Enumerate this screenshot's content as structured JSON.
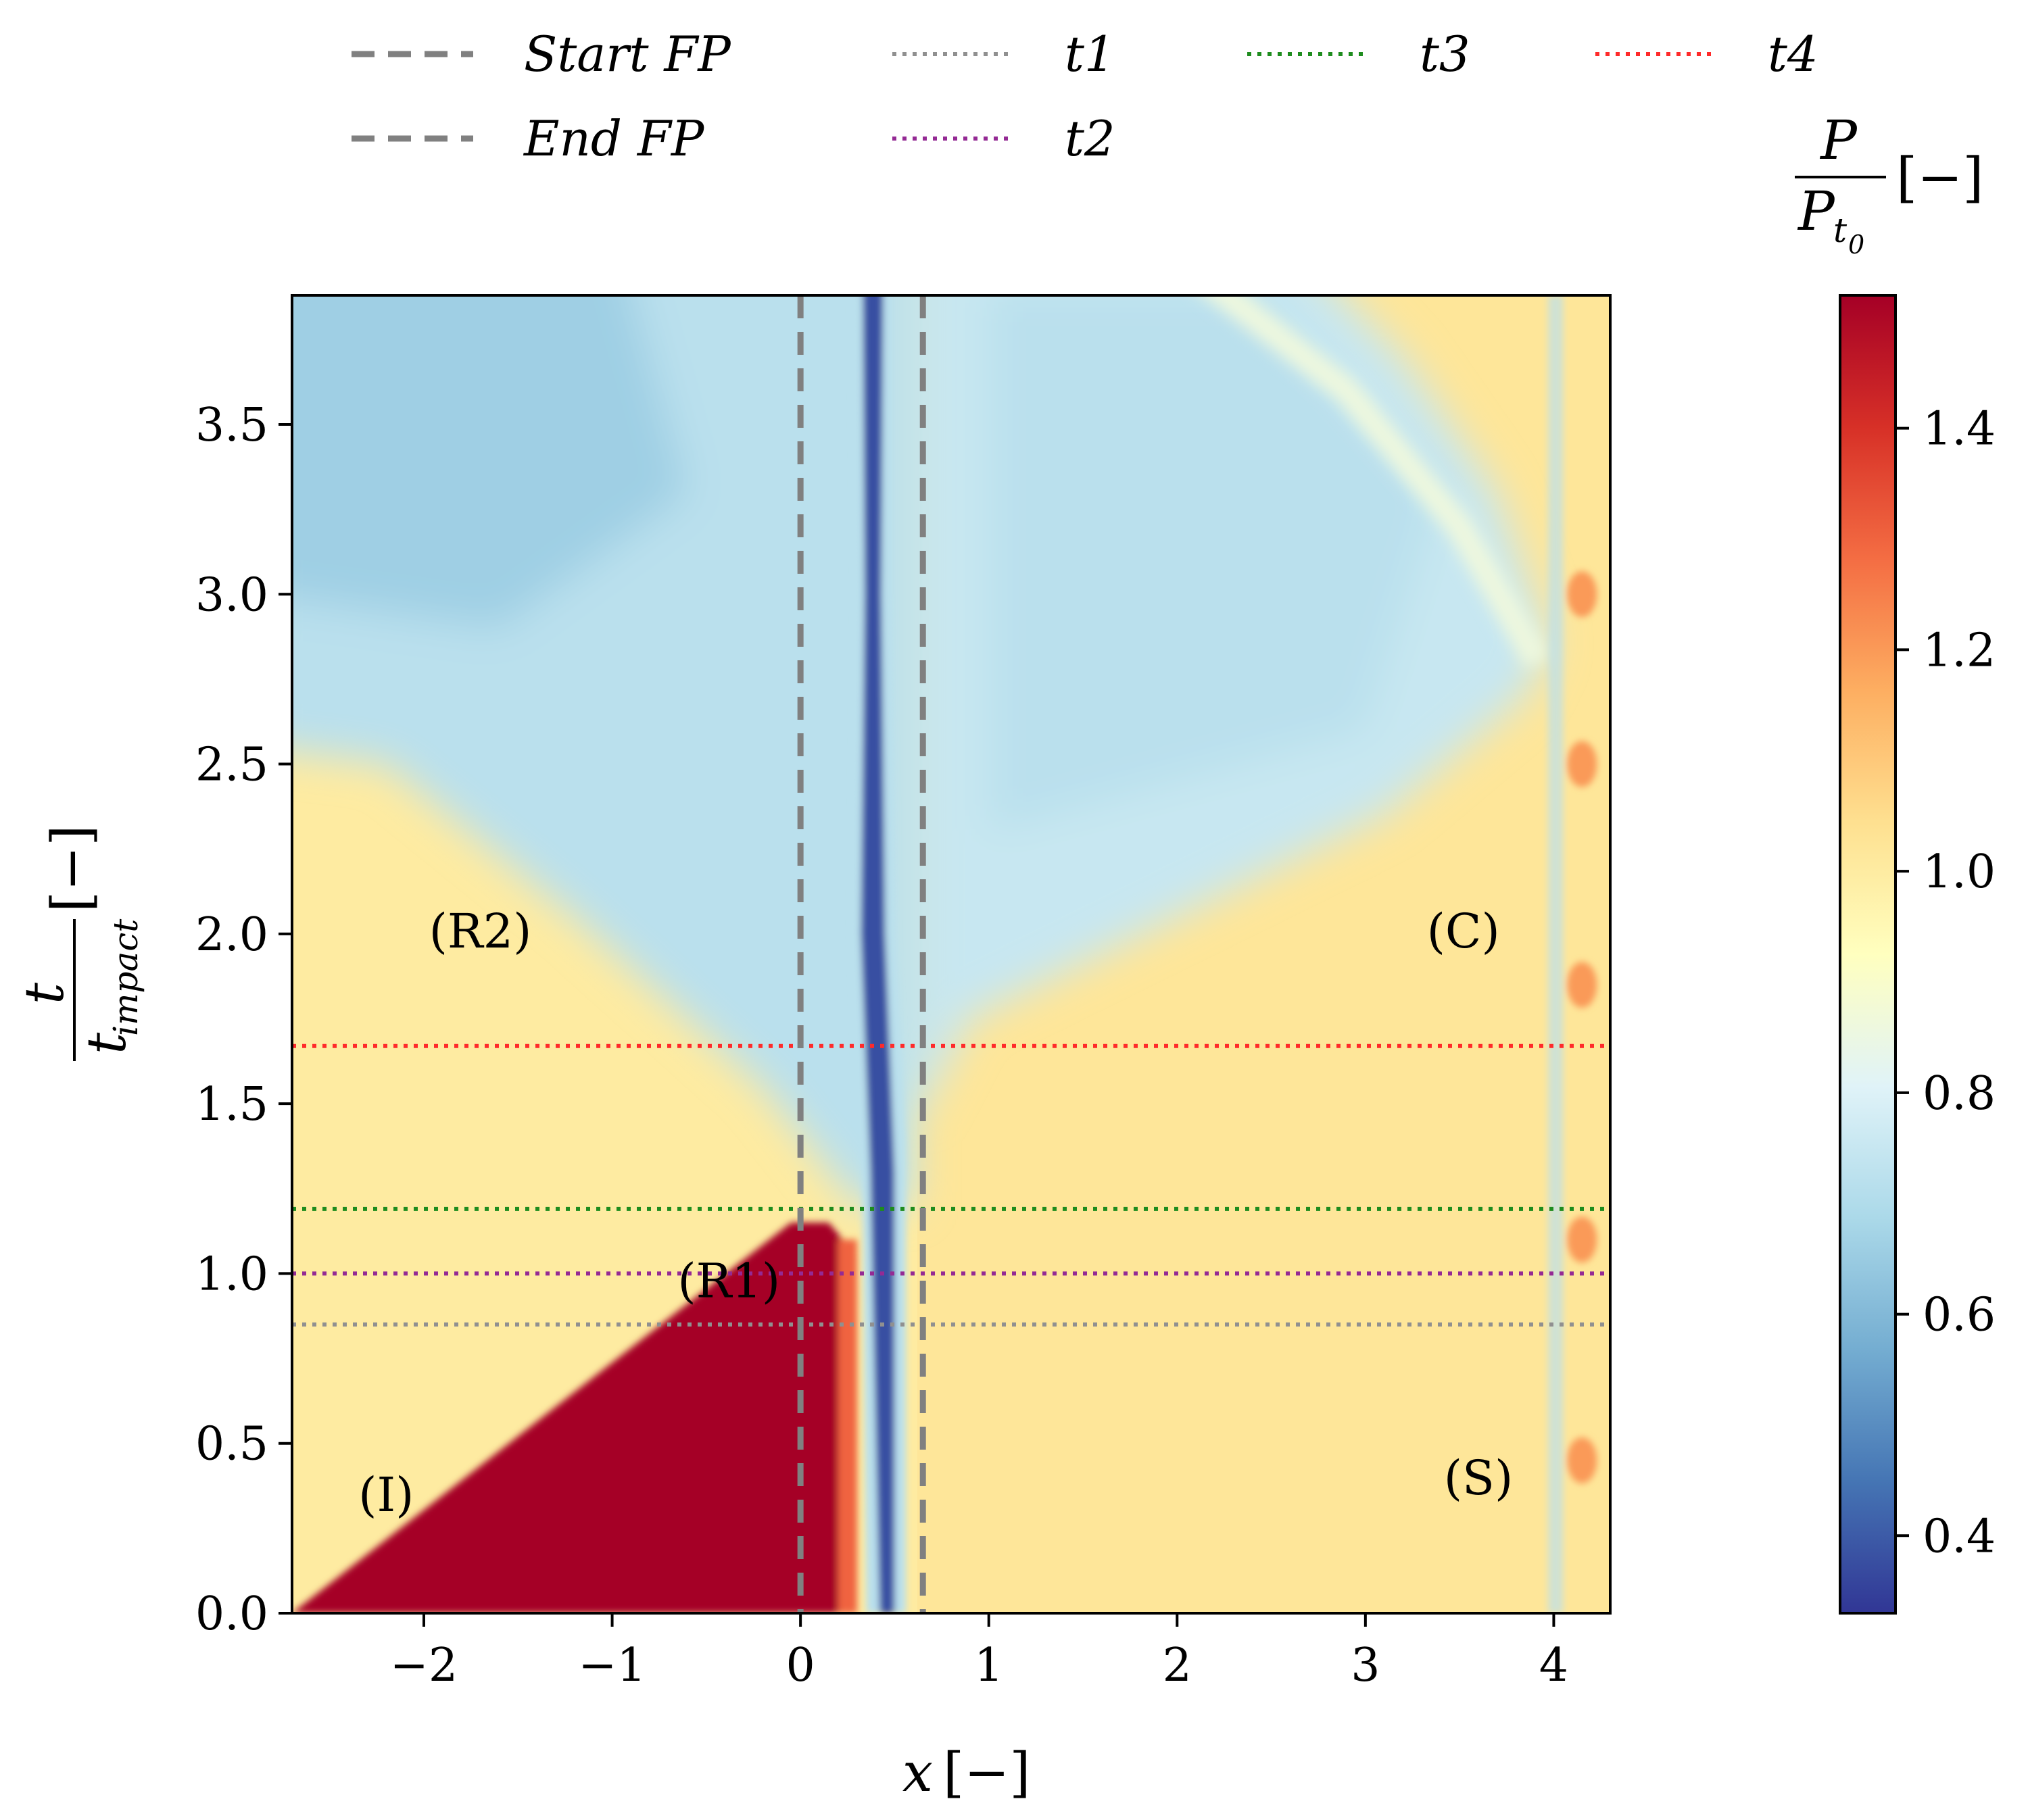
{
  "chart_data": {
    "type": "heatmap",
    "title": "",
    "xlabel": "x [−]",
    "ylabel": "t / t_impact [−]",
    "ylabel_numerator": "t",
    "ylabel_denominator": "t",
    "ylabel_denominator_sub": "impact",
    "ylabel_unit": "[−]",
    "xlabel_var": "x",
    "xlabel_unit": "[−]",
    "xlim": [
      -2.7,
      4.3
    ],
    "ylim": [
      0.0,
      3.88
    ],
    "xticks": [
      -2,
      -1,
      0,
      1,
      2,
      3,
      4
    ],
    "xtick_labels": [
      "−2",
      "−1",
      "0",
      "1",
      "2",
      "3",
      "4"
    ],
    "yticks": [
      0.0,
      0.5,
      1.0,
      1.5,
      2.0,
      2.5,
      3.0,
      3.5
    ],
    "ytick_labels": [
      "0.0",
      "0.5",
      "1.0",
      "1.5",
      "2.0",
      "2.5",
      "3.0",
      "3.5"
    ],
    "grid": false,
    "colorbar": {
      "label_numerator": "P",
      "label_denominator": "P",
      "label_denominator_sub": "t0",
      "label_sub_display": "t",
      "label_sub_sub_display": "0",
      "unit": "[−]",
      "colormap": "RdYlBu_r",
      "range": [
        0.33,
        1.52
      ],
      "ticks": [
        0.4,
        0.6,
        0.8,
        1.0,
        1.2,
        1.4
      ],
      "tick_labels": [
        "0.4",
        "0.6",
        "0.8",
        "1.0",
        "1.2",
        "1.4"
      ],
      "colors": [
        "#313695",
        "#4575b4",
        "#74add1",
        "#abd9e9",
        "#e0f3f8",
        "#ffffbf",
        "#fee090",
        "#fdae61",
        "#f46d43",
        "#d73027",
        "#a50026"
      ]
    },
    "vertical_lines": [
      {
        "name": "Start FP",
        "x": 0.0,
        "style": "dashed",
        "color": "#808080"
      },
      {
        "name": "End FP",
        "x": 0.65,
        "style": "dashed",
        "color": "#808080"
      }
    ],
    "horizontal_lines": [
      {
        "name": "t1",
        "y": 0.85,
        "style": "dotted",
        "color": "#909090"
      },
      {
        "name": "t2",
        "y": 1.0,
        "style": "dotted",
        "color": "#942a94"
      },
      {
        "name": "t3",
        "y": 1.19,
        "style": "dotted",
        "color": "#1e8c1e"
      },
      {
        "name": "t4",
        "y": 1.67,
        "style": "dotted",
        "color": "#ff2a2a"
      }
    ],
    "legend": {
      "placement": "top",
      "entries": [
        {
          "label": "Start FP",
          "style": "dashed",
          "color": "#808080"
        },
        {
          "label": "End FP",
          "style": "dashed",
          "color": "#808080"
        },
        {
          "label": "t1",
          "style": "dotted",
          "color": "#909090"
        },
        {
          "label": "t2",
          "style": "dotted",
          "color": "#942a94"
        },
        {
          "label": "t3",
          "style": "dotted",
          "color": "#1e8c1e"
        },
        {
          "label": "t4",
          "style": "dotted",
          "color": "#ff2a2a"
        }
      ]
    },
    "annotations": [
      {
        "text": "(I)",
        "x": -2.2,
        "y": 0.3
      },
      {
        "text": "(R1)",
        "x": -0.38,
        "y": 0.93
      },
      {
        "text": "(R2)",
        "x": -1.7,
        "y": 1.96
      },
      {
        "text": "(C)",
        "x": 3.52,
        "y": 1.96
      },
      {
        "text": "(S)",
        "x": 3.6,
        "y": 0.35
      }
    ],
    "field_regions": [
      {
        "name": "(I)",
        "value": 1.0
      },
      {
        "name": "(R1)",
        "value": 1.52
      },
      {
        "name": "(R2)",
        "value": 1.0
      },
      {
        "name": "upper-left expansion",
        "value": 0.72
      },
      {
        "name": "(C)",
        "value": 1.02
      },
      {
        "name": "upper-right expansion",
        "value": 0.75
      },
      {
        "name": "(S)",
        "value": 0.72
      },
      {
        "name": "low-pressure filament",
        "value": 0.38
      }
    ]
  }
}
